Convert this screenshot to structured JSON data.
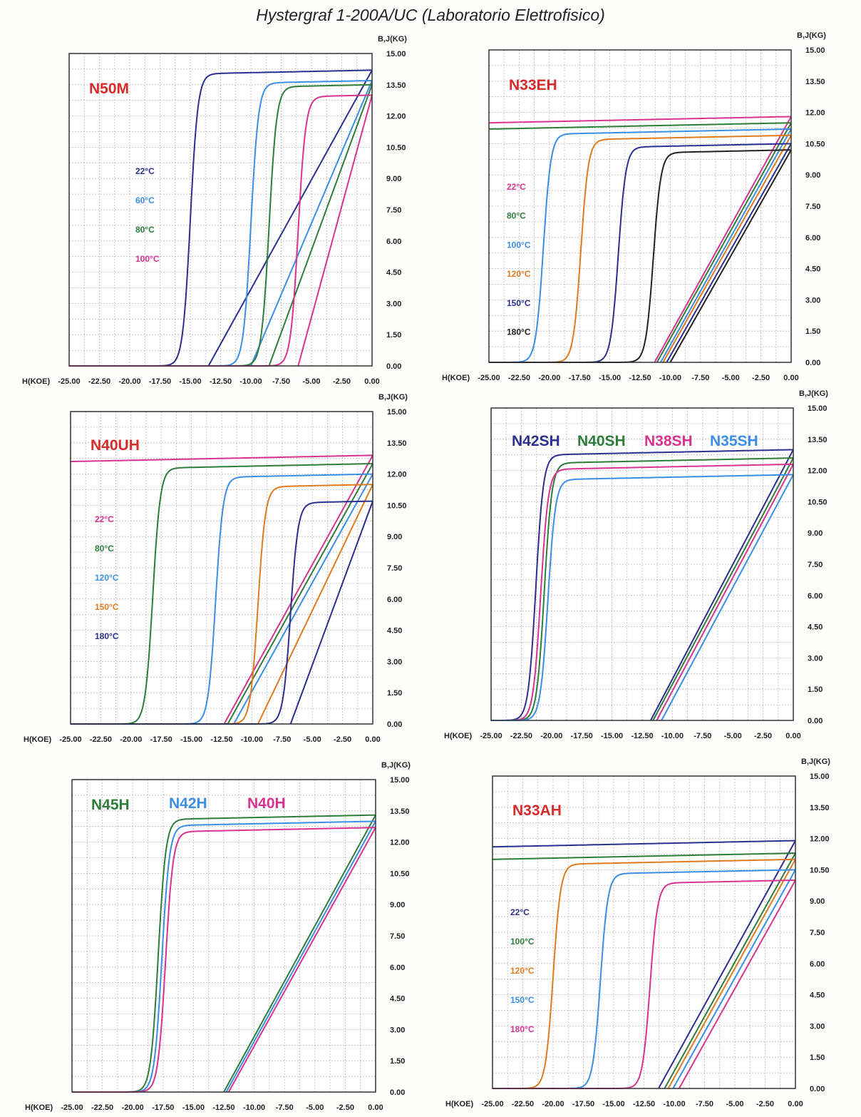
{
  "title": "Hystergraf 1-200A/UC (Laboratorio Elettrofisico)",
  "chart_data": [
    {
      "type": "line",
      "grade_labels": [
        {
          "text": "N50M",
          "color": "#d62b2b"
        }
      ],
      "legend": [
        {
          "text": "22°C",
          "color": "#2b2f8f"
        },
        {
          "text": "60°C",
          "color": "#3a8ee6"
        },
        {
          "text": "80°C",
          "color": "#2e7d3a"
        },
        {
          "text": "100°C",
          "color": "#d8338f"
        }
      ],
      "xlabel": "H(KOE)",
      "ylabel": "B,J(KG)",
      "xlim": [
        -25,
        0
      ],
      "ylim": [
        0,
        15
      ],
      "x_ticks": [
        "-25.00",
        "-22.50",
        "-20.00",
        "-17.50",
        "-15.00",
        "-12.50",
        "-10.00",
        "-7.50",
        "-5.00",
        "-2.50",
        "0.00"
      ],
      "y_ticks": [
        "0.00",
        "1.50",
        "3.00",
        "4.50",
        "6.00",
        "7.50",
        "9.00",
        "10.50",
        "12.00",
        "13.50",
        "15.00"
      ],
      "series": [
        {
          "color": "#2b2f8f",
          "br": 14.2,
          "hcb": -13.5,
          "hcj": -15.0,
          "slope": 0.25
        },
        {
          "color": "#3a8ee6",
          "br": 13.7,
          "hcb": -10.0,
          "hcj": -10.0,
          "slope": 0.3
        },
        {
          "color": "#2e7d3a",
          "br": 13.5,
          "hcb": -8.5,
          "hcj": -8.5,
          "slope": 0.3
        },
        {
          "color": "#d8338f",
          "br": 13.0,
          "hcb": -6.1,
          "hcj": -6.1,
          "slope": 0.3
        }
      ]
    },
    {
      "type": "line",
      "grade_labels": [
        {
          "text": "N33EH",
          "color": "#d62b2b"
        }
      ],
      "legend": [
        {
          "text": "22°C",
          "color": "#d8338f"
        },
        {
          "text": "80°C",
          "color": "#2e7d3a"
        },
        {
          "text": "100°C",
          "color": "#3a8ee6"
        },
        {
          "text": "120°C",
          "color": "#e07a1f"
        },
        {
          "text": "150°C",
          "color": "#2b2f8f"
        },
        {
          "text": "180°C",
          "color": "#222222"
        }
      ],
      "xlabel": "H(KOE)",
      "ylabel": "B,J(KG)",
      "xlim": [
        -25,
        0
      ],
      "ylim": [
        0,
        15
      ],
      "x_ticks": [
        "-25.00",
        "-22.50",
        "-20.00",
        "-17.50",
        "-15.00",
        "-12.50",
        "-10.00",
        "-7.50",
        "-5.00",
        "-2.50",
        "0.00"
      ],
      "y_ticks": [
        "0.00",
        "1.50",
        "3.00",
        "4.50",
        "6.00",
        "7.50",
        "9.00",
        "10.50",
        "12.00",
        "13.50",
        "15.00"
      ],
      "series": [
        {
          "color": "#d8338f",
          "br": 11.8,
          "hcb": -11.3,
          "hcj": -40,
          "slope": 0.25
        },
        {
          "color": "#2e7d3a",
          "br": 11.5,
          "hcb": -11.1,
          "hcj": -40,
          "slope": 0.3
        },
        {
          "color": "#3a8ee6",
          "br": 11.2,
          "hcb": -10.8,
          "hcj": -20.5,
          "slope": 0.3
        },
        {
          "color": "#e07a1f",
          "br": 10.9,
          "hcb": -10.6,
          "hcj": -17.4,
          "slope": 0.3
        },
        {
          "color": "#2b2f8f",
          "br": 10.5,
          "hcb": -10.3,
          "hcj": -14.3,
          "slope": 0.3
        },
        {
          "color": "#222222",
          "br": 10.2,
          "hcb": -10.0,
          "hcj": -11.4,
          "slope": 0.3
        }
      ]
    },
    {
      "type": "line",
      "grade_labels": [
        {
          "text": "N40UH",
          "color": "#d62b2b"
        }
      ],
      "legend": [
        {
          "text": "22°C",
          "color": "#d8338f"
        },
        {
          "text": "80°C",
          "color": "#2e7d3a"
        },
        {
          "text": "120°C",
          "color": "#3a8ee6"
        },
        {
          "text": "150°C",
          "color": "#e07a1f"
        },
        {
          "text": "180°C",
          "color": "#2b2f8f"
        }
      ],
      "xlabel": "H(KOE)",
      "ylabel": "B,J(KG)",
      "xlim": [
        -25,
        0
      ],
      "ylim": [
        0,
        15
      ],
      "x_ticks": [
        "-25.00",
        "-22.50",
        "-20.00",
        "-17.50",
        "-15.00",
        "-12.50",
        "-10.00",
        "-7.50",
        "-5.00",
        "-2.50",
        "0.00"
      ],
      "y_ticks": [
        "0.00",
        "1.50",
        "3.00",
        "4.50",
        "6.00",
        "7.50",
        "9.00",
        "10.50",
        "12.00",
        "13.50",
        "15.00"
      ],
      "series": [
        {
          "color": "#d8338f",
          "br": 12.9,
          "hcb": -12.3,
          "hcj": -40,
          "slope": 0.25
        },
        {
          "color": "#2e7d3a",
          "br": 12.5,
          "hcb": -12.0,
          "hcj": -18.2,
          "slope": 0.3
        },
        {
          "color": "#3a8ee6",
          "br": 12.0,
          "hcb": -11.5,
          "hcj": -13.0,
          "slope": 0.3
        },
        {
          "color": "#e07a1f",
          "br": 11.5,
          "hcb": -9.5,
          "hcj": -9.5,
          "slope": 0.3
        },
        {
          "color": "#2b2f8f",
          "br": 10.7,
          "hcb": -6.8,
          "hcj": -6.8,
          "slope": 0.3
        }
      ]
    },
    {
      "type": "line",
      "grade_labels": [
        {
          "text": "N42SH",
          "color": "#2b2f8f"
        },
        {
          "text": "N40SH",
          "color": "#2e7d3a"
        },
        {
          "text": "N38SH",
          "color": "#d8338f"
        },
        {
          "text": "N35SH",
          "color": "#3a8ee6"
        }
      ],
      "legend": [],
      "xlabel": "H(KOE)",
      "ylabel": "B,J(KG)",
      "xlim": [
        -25,
        0
      ],
      "ylim": [
        0,
        15
      ],
      "x_ticks": [
        "-25.00",
        "-22.50",
        "-20.00",
        "-17.50",
        "-15.00",
        "-12.50",
        "-10.00",
        "-7.50",
        "-5.00",
        "-2.50",
        "0.00"
      ],
      "y_ticks": [
        "0.00",
        "1.50",
        "3.00",
        "4.50",
        "6.00",
        "7.50",
        "9.00",
        "10.50",
        "12.00",
        "13.50",
        "15.00"
      ],
      "series": [
        {
          "color": "#2b2f8f",
          "br": 13.0,
          "hcb": -11.8,
          "hcj": -21.3,
          "slope": 0.25
        },
        {
          "color": "#2e7d3a",
          "br": 12.6,
          "hcb": -11.6,
          "hcj": -20.6,
          "slope": 0.25
        },
        {
          "color": "#d8338f",
          "br": 12.3,
          "hcb": -11.3,
          "hcj": -20.9,
          "slope": 0.25
        },
        {
          "color": "#3a8ee6",
          "br": 11.8,
          "hcb": -10.9,
          "hcj": -20.3,
          "slope": 0.25
        }
      ]
    },
    {
      "type": "line",
      "grade_labels": [
        {
          "text": "N45H",
          "color": "#2e7d3a"
        },
        {
          "text": "N42H",
          "color": "#3a8ee6"
        },
        {
          "text": "N40H",
          "color": "#d8338f"
        }
      ],
      "legend": [],
      "xlabel": "H(KOE)",
      "ylabel": "B,J(KG)",
      "xlim": [
        -25,
        0
      ],
      "ylim": [
        0,
        15
      ],
      "x_ticks": [
        "-25.00",
        "-22.50",
        "-20.00",
        "-17.50",
        "-15.00",
        "-12.50",
        "-10.00",
        "-7.50",
        "-5.00",
        "-2.50",
        "0.00"
      ],
      "y_ticks": [
        "0.00",
        "1.50",
        "3.00",
        "4.50",
        "6.00",
        "7.50",
        "9.00",
        "10.50",
        "12.00",
        "13.50",
        "15.00"
      ],
      "series": [
        {
          "color": "#2e7d3a",
          "br": 13.3,
          "hcb": -12.5,
          "hcj": -17.9,
          "slope": 0.25
        },
        {
          "color": "#3a8ee6",
          "br": 13.0,
          "hcb": -12.3,
          "hcj": -17.6,
          "slope": 0.25
        },
        {
          "color": "#d8338f",
          "br": 12.7,
          "hcb": -12.1,
          "hcj": -17.3,
          "slope": 0.25
        }
      ]
    },
    {
      "type": "line",
      "grade_labels": [
        {
          "text": "N33AH",
          "color": "#d62b2b"
        }
      ],
      "legend": [
        {
          "text": "22°C",
          "color": "#2b2f8f"
        },
        {
          "text": "100°C",
          "color": "#2e7d3a"
        },
        {
          "text": "120°C",
          "color": "#e07a1f"
        },
        {
          "text": "150°C",
          "color": "#3a8ee6"
        },
        {
          "text": "180°C",
          "color": "#d8338f"
        }
      ],
      "xlabel": "H(KOE)",
      "ylabel": "B,J(KG)",
      "xlim": [
        -25,
        0
      ],
      "ylim": [
        0,
        15
      ],
      "x_ticks": [
        "-25.00",
        "-22.50",
        "-20.00",
        "-17.50",
        "-15.00",
        "-12.50",
        "-10.00",
        "-7.50",
        "-5.00",
        "-2.50",
        "0.00"
      ],
      "y_ticks": [
        "0.00",
        "1.50",
        "3.00",
        "4.50",
        "6.00",
        "7.50",
        "9.00",
        "10.50",
        "12.00",
        "13.50",
        "15.00"
      ],
      "series": [
        {
          "color": "#2b2f8f",
          "br": 11.9,
          "hcb": -11.3,
          "hcj": -40,
          "slope": 0.25
        },
        {
          "color": "#2e7d3a",
          "br": 11.3,
          "hcb": -10.8,
          "hcj": -40,
          "slope": 0.3
        },
        {
          "color": "#e07a1f",
          "br": 11.0,
          "hcb": -10.5,
          "hcj": -20.0,
          "slope": 0.3
        },
        {
          "color": "#3a8ee6",
          "br": 10.5,
          "hcb": -10.1,
          "hcj": -16.1,
          "slope": 0.3
        },
        {
          "color": "#d8338f",
          "br": 10.0,
          "hcb": -9.6,
          "hcj": -12.0,
          "slope": 0.3
        }
      ]
    }
  ]
}
